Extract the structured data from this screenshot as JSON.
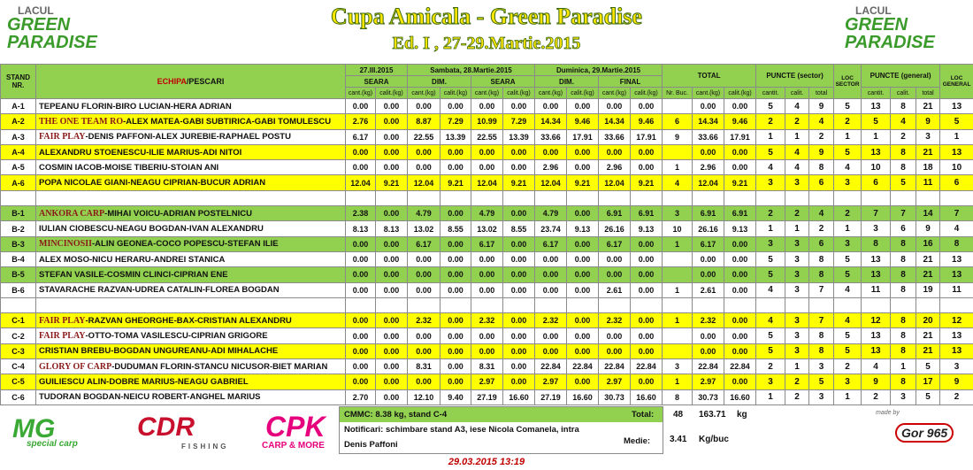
{
  "header": {
    "left_logo": {
      "line1": "LACUL",
      "line2": "GREEN",
      "line3": "PARADISE"
    },
    "title": "Cupa Amicala - Green Paradise",
    "subtitle": "Ed. I , 27-29.Martie.2015",
    "right_logo": {
      "line1": "LACUL",
      "line2": "GREEN",
      "line3": "PARADISE"
    }
  },
  "table": {
    "head": {
      "stand": "STAND NR.",
      "echipa": "ECHIPA",
      "pescari": "/PESCARI",
      "day1": "27.III.2015",
      "day2": "Sambata, 28.Martie.2015",
      "day3": "Duminica, 29.Martie.2015",
      "total": "TOTAL",
      "puncte_sector": "PUNCTE (sector)",
      "loc_sector": "LOC SECTOR",
      "puncte_general": "PUNCTE (general)",
      "loc_general": "LOC GENERAL",
      "sessions": [
        "SEARA",
        "DIM.",
        "SEARA",
        "DIM.",
        "FINAL"
      ],
      "units": [
        "cant.(kg)",
        "calit.(kg)",
        "cant.(kg)",
        "calit.(kg)",
        "cant.(kg)",
        "calit.(kg)",
        "cant.(kg)",
        "calit.(kg)",
        "cant.(kg)",
        "calit.(kg)",
        "Nr. Buc.",
        "cant.(kg)",
        "calit.(kg)",
        "cantit.",
        "calit.",
        "total",
        "cantit.",
        "calit.",
        "total"
      ]
    },
    "groups": [
      {
        "rows": [
          {
            "stand": "A-1",
            "pescari": "TEPEANU FLORIN-BIRO LUCIAN-HERA ADRIAN",
            "cells": [
              "0.00",
              "0.00",
              "0.00",
              "0.00",
              "0.00",
              "0.00",
              "0.00",
              "0.00",
              "0.00",
              "0.00",
              null,
              "0.00",
              "0.00",
              "5",
              "4",
              "9",
              "5",
              "13",
              "8",
              "21",
              "13"
            ]
          },
          {
            "stand": "A-2",
            "team": "THE ONE TEAM RO",
            "pescari": "-ALEX MATEA-GABI SUBTIRICA-GABI TOMULESCU",
            "cells": [
              "2.76",
              "0.00",
              "8.87",
              "7.29",
              "10.99",
              "7.29",
              "14.34",
              "9.46",
              "14.34",
              "9.46",
              "6",
              "14.34",
              "9.46",
              "2",
              "2",
              "4",
              "2",
              "5",
              "4",
              "9",
              "5"
            ]
          },
          {
            "stand": "A-3",
            "team": "FAIR PLAY",
            "pescari": "-DENIS PAFFONI-ALEX JUREBIE-RAPHAEL POSTU",
            "cells": [
              "6.17",
              "0.00",
              "22.55",
              "13.39",
              "22.55",
              "13.39",
              "33.66",
              "17.91",
              "33.66",
              "17.91",
              "9",
              "33.66",
              "17.91",
              "1",
              "1",
              "2",
              "1",
              "1",
              "2",
              "3",
              "1"
            ]
          },
          {
            "stand": "A-4",
            "pescari": "ALEXANDRU STOENESCU-ILIE MARIUS-ADI NITOI",
            "cells": [
              "0.00",
              "0.00",
              "0.00",
              "0.00",
              "0.00",
              "0.00",
              "0.00",
              "0.00",
              "0.00",
              "0.00",
              null,
              "0.00",
              "0.00",
              "5",
              "4",
              "9",
              "5",
              "13",
              "8",
              "21",
              "13"
            ]
          },
          {
            "stand": "A-5",
            "pescari": "COSMIN IACOB-MOISE TIBERIU-STOIAN ANI",
            "cells": [
              "0.00",
              "0.00",
              "0.00",
              "0.00",
              "0.00",
              "0.00",
              "2.96",
              "0.00",
              "2.96",
              "0.00",
              "1",
              "2.96",
              "0.00",
              "4",
              "4",
              "8",
              "4",
              "10",
              "8",
              "18",
              "10"
            ]
          },
          {
            "stand": "A-6",
            "pescari": "POPA NICOLAE GIANI-NEAGU CIPRIAN-BUCUR ADRIAN",
            "cells": [
              "12.04",
              "9.21",
              "12.04",
              "9.21",
              "12.04",
              "9.21",
              "12.04",
              "9.21",
              "12.04",
              "9.21",
              "4",
              "12.04",
              "9.21",
              "3",
              "3",
              "6",
              "3",
              "6",
              "5",
              "11",
              "6"
            ]
          }
        ]
      },
      {
        "rows": [
          {
            "stand": "B-1",
            "team": "ANKORA CARP",
            "pescari": "-MIHAI VOICU-ADRIAN POSTELNICU",
            "cells": [
              "2.38",
              "0.00",
              "4.79",
              "0.00",
              "4.79",
              "0.00",
              "4.79",
              "0.00",
              "6.91",
              "6.91",
              "3",
              "6.91",
              "6.91",
              "2",
              "2",
              "4",
              "2",
              "7",
              "7",
              "14",
              "7"
            ]
          },
          {
            "stand": "B-2",
            "pescari": "IULIAN CIOBESCU-NEAGU BOGDAN-IVAN ALEXANDRU",
            "cells": [
              "8.13",
              "8.13",
              "13.02",
              "8.55",
              "13.02",
              "8.55",
              "23.74",
              "9.13",
              "26.16",
              "9.13",
              "10",
              "26.16",
              "9.13",
              "1",
              "1",
              "2",
              "1",
              "3",
              "6",
              "9",
              "4"
            ]
          },
          {
            "stand": "B-3",
            "team": "MINCINOSII",
            "pescari": "-ALIN GEONEA-COCO POPESCU-STEFAN ILIE",
            "cells": [
              "0.00",
              "0.00",
              "6.17",
              "0.00",
              "6.17",
              "0.00",
              "6.17",
              "0.00",
              "6.17",
              "0.00",
              "1",
              "6.17",
              "0.00",
              "3",
              "3",
              "6",
              "3",
              "8",
              "8",
              "16",
              "8"
            ]
          },
          {
            "stand": "B-4",
            "pescari": "ALEX MOSO-NICU HERARU-ANDREI STANICA",
            "cells": [
              "0.00",
              "0.00",
              "0.00",
              "0.00",
              "0.00",
              "0.00",
              "0.00",
              "0.00",
              "0.00",
              "0.00",
              null,
              "0.00",
              "0.00",
              "5",
              "3",
              "8",
              "5",
              "13",
              "8",
              "21",
              "13"
            ]
          },
          {
            "stand": "B-5",
            "pescari": "STEFAN VASILE-COSMIN CLINCI-CIPRIAN ENE",
            "cells": [
              "0.00",
              "0.00",
              "0.00",
              "0.00",
              "0.00",
              "0.00",
              "0.00",
              "0.00",
              "0.00",
              "0.00",
              null,
              "0.00",
              "0.00",
              "5",
              "3",
              "8",
              "5",
              "13",
              "8",
              "21",
              "13"
            ]
          },
          {
            "stand": "B-6",
            "pescari": "STAVARACHE RAZVAN-UDREA CATALIN-FLOREA BOGDAN",
            "cells": [
              "0.00",
              "0.00",
              "0.00",
              "0.00",
              "0.00",
              "0.00",
              "0.00",
              "0.00",
              "2.61",
              "0.00",
              "1",
              "2.61",
              "0.00",
              "4",
              "3",
              "7",
              "4",
              "11",
              "8",
              "19",
              "11"
            ]
          }
        ]
      },
      {
        "rows": [
          {
            "stand": "C-1",
            "team": "FAIR PLAY",
            "pescari": "-RAZVAN GHEORGHE-BAX-CRISTIAN ALEXANDRU",
            "cells": [
              "0.00",
              "0.00",
              "2.32",
              "0.00",
              "2.32",
              "0.00",
              "2.32",
              "0.00",
              "2.32",
              "0.00",
              "1",
              "2.32",
              "0.00",
              "4",
              "3",
              "7",
              "4",
              "12",
              "8",
              "20",
              "12"
            ]
          },
          {
            "stand": "C-2",
            "team": "FAIR PLAY",
            "pescari": "-OTTO-TOMA VASILESCU-CIPRIAN GRIGORE",
            "cells": [
              "0.00",
              "0.00",
              "0.00",
              "0.00",
              "0.00",
              "0.00",
              "0.00",
              "0.00",
              "0.00",
              "0.00",
              null,
              "0.00",
              "0.00",
              "5",
              "3",
              "8",
              "5",
              "13",
              "8",
              "21",
              "13"
            ]
          },
          {
            "stand": "C-3",
            "pescari": "CRISTIAN BREBU-BOGDAN UNGUREANU-ADI MIHALACHE",
            "cells": [
              "0.00",
              "0.00",
              "0.00",
              "0.00",
              "0.00",
              "0.00",
              "0.00",
              "0.00",
              "0.00",
              "0.00",
              null,
              "0.00",
              "0.00",
              "5",
              "3",
              "8",
              "5",
              "13",
              "8",
              "21",
              "13"
            ]
          },
          {
            "stand": "C-4",
            "team": "GLORY OF CARP",
            "pescari": "-DUDUMAN FLORIN-STANCU NICUSOR-BIET MARIAN",
            "cells": [
              "0.00",
              "0.00",
              "8.31",
              "0.00",
              "8.31",
              "0.00",
              "22.84",
              "22.84",
              "22.84",
              "22.84",
              "3",
              "22.84",
              "22.84",
              "2",
              "1",
              "3",
              "2",
              "4",
              "1",
              "5",
              "3"
            ]
          },
          {
            "stand": "C-5",
            "pescari": "GUILIESCU ALIN-DOBRE MARIUS-NEAGU GABRIEL",
            "cells": [
              "0.00",
              "0.00",
              "0.00",
              "0.00",
              "2.97",
              "0.00",
              "2.97",
              "0.00",
              "2.97",
              "0.00",
              "1",
              "2.97",
              "0.00",
              "3",
              "2",
              "5",
              "3",
              "9",
              "8",
              "17",
              "9"
            ]
          },
          {
            "stand": "C-6",
            "pescari": "TUDORAN BOGDAN-NEICU ROBERT-ANGHEL MARIUS",
            "cells": [
              "2.70",
              "0.00",
              "12.10",
              "9.40",
              "27.19",
              "16.60",
              "27.19",
              "16.60",
              "30.73",
              "16.60",
              "8",
              "30.73",
              "16.60",
              "1",
              "2",
              "3",
              "1",
              "2",
              "3",
              "5",
              "2"
            ]
          }
        ]
      }
    ]
  },
  "footer": {
    "cmmc": "CMMC: 8.38 kg, stand C-4",
    "total_label": "Total:",
    "total_buc": "48",
    "total_kg": "163.71",
    "total_unit": "kg",
    "notificari": "Notificari: schimbare stand A3, iese Nicola Comanela, intra",
    "notificari_cont": "Denis Paffoni",
    "medie_label": "Medie:",
    "medie": "3.41",
    "medie_unit": "Kg/buc"
  },
  "sponsors": {
    "mg": "MG",
    "mg_sub": "special carp",
    "cdr": "CDR",
    "cdr_sub": "FISHING",
    "cpk": "CPK",
    "cpk_sub": "CARP & MORE",
    "made_by": "made by",
    "gor": "Gor 965"
  },
  "timestamp": "29.03.2015 13:19"
}
